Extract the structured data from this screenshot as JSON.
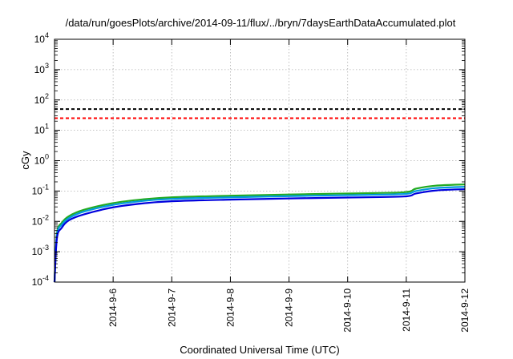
{
  "chart_data": {
    "type": "line",
    "title": "/data/run/goesPlots/archive/2014-09-11/flux/../bryn/7daysEarthDataAccumulated.plot",
    "xlabel": "Coordinated Universal Time (UTC)",
    "ylabel": "cGy",
    "y_scale": "log",
    "ylim_exponents": [
      -4,
      4
    ],
    "y_tick_base": "10",
    "y_tick_exponents": [
      "-4",
      "-3",
      "-2",
      "-1",
      "0",
      "1",
      "2",
      "3",
      "4"
    ],
    "x_range_days": [
      "2014-09-05",
      "2014-09-12"
    ],
    "x_ticks": [
      "2014-9-6",
      "2014-9-7",
      "2014-9-8",
      "2014-9-9",
      "2014-9-10",
      "2014-9-11",
      "2014-9-12"
    ],
    "grid": true,
    "thresholds": [
      {
        "value": 50,
        "color": "#000000",
        "style": "dashed"
      },
      {
        "value": 25,
        "color": "#ff0000",
        "style": "dashed"
      }
    ],
    "series": [
      {
        "color": "#22aa22",
        "x": [
          "2014-09-05 00:00",
          "2014-09-05 01:00",
          "2014-09-05 03:00",
          "2014-09-05 06:00",
          "2014-09-05 12:00",
          "2014-09-06 00:00",
          "2014-09-06 12:00",
          "2014-09-07 00:00",
          "2014-09-08 00:00",
          "2014-09-09 00:00",
          "2014-09-10 00:00",
          "2014-09-10 23:00",
          "2014-09-11 04:00",
          "2014-09-11 12:00",
          "2014-09-12 00:00"
        ],
        "values": [
          0.0001,
          0.004,
          0.009,
          0.015,
          0.024,
          0.04,
          0.053,
          0.062,
          0.07,
          0.077,
          0.083,
          0.091,
          0.12,
          0.15,
          0.165
        ]
      },
      {
        "color": "#0099dd",
        "x": [
          "2014-09-05 00:00",
          "2014-09-05 01:00",
          "2014-09-05 03:00",
          "2014-09-05 06:00",
          "2014-09-05 12:00",
          "2014-09-06 00:00",
          "2014-09-06 12:00",
          "2014-09-07 00:00",
          "2014-09-08 00:00",
          "2014-09-09 00:00",
          "2014-09-10 00:00",
          "2014-09-10 23:00",
          "2014-09-11 04:00",
          "2014-09-11 12:00",
          "2014-09-12 00:00"
        ],
        "values": [
          0.0001,
          0.0035,
          0.0078,
          0.013,
          0.021,
          0.035,
          0.047,
          0.055,
          0.062,
          0.068,
          0.073,
          0.08,
          0.1,
          0.125,
          0.138
        ]
      },
      {
        "color": "#0000dd",
        "x": [
          "2014-09-05 00:00",
          "2014-09-05 01:00",
          "2014-09-05 03:00",
          "2014-09-05 06:00",
          "2014-09-05 12:00",
          "2014-09-06 00:00",
          "2014-09-06 12:00",
          "2014-09-07 00:00",
          "2014-09-08 00:00",
          "2014-09-09 00:00",
          "2014-09-10 00:00",
          "2014-09-10 23:00",
          "2014-09-11 04:00",
          "2014-09-11 12:00",
          "2014-09-12 00:00"
        ],
        "values": [
          0.0001,
          0.0028,
          0.0062,
          0.011,
          0.017,
          0.029,
          0.039,
          0.046,
          0.052,
          0.057,
          0.061,
          0.066,
          0.083,
          0.104,
          0.115
        ]
      }
    ]
  }
}
